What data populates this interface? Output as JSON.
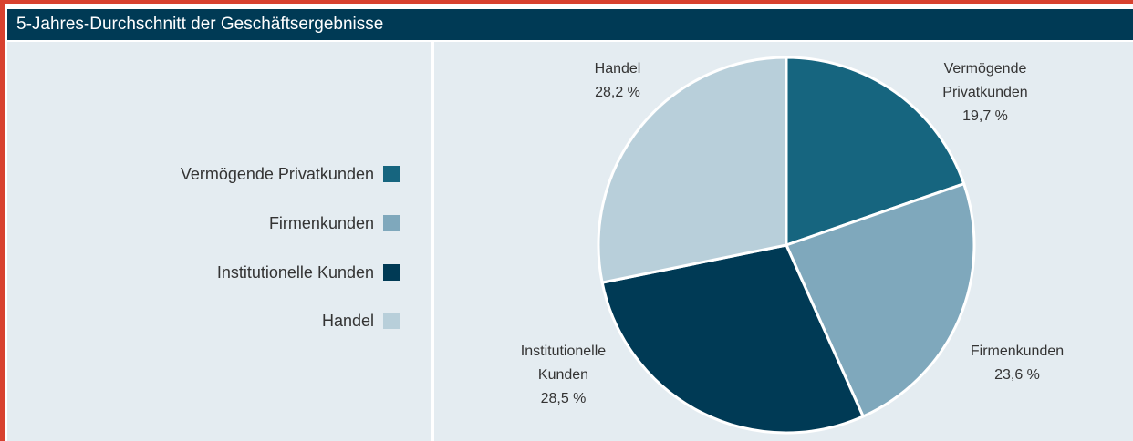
{
  "chart_data": {
    "type": "pie",
    "title": "5-Jahres-Durchschnitt der Geschäftsergebnisse",
    "categories": [
      "Vermögende Privatkunden",
      "Firmenkunden",
      "Institutionelle Kunden",
      "Handel"
    ],
    "values": [
      19.7,
      23.6,
      28.5,
      28.2
    ],
    "value_labels": [
      "19,7 %",
      "23,6 %",
      "28,5 %",
      "28,2 %"
    ],
    "colors": [
      "#16657f",
      "#7fa8bc",
      "#003a55",
      "#b8cfda"
    ],
    "legend": "left"
  }
}
